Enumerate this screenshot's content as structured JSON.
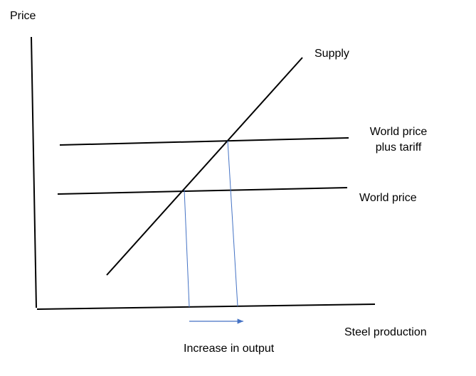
{
  "labels": {
    "y_axis": "Price",
    "x_axis": "Steel production",
    "supply": "Supply",
    "world_price_plus_tariff_line1": "World price",
    "world_price_plus_tariff_line2": "plus tariff",
    "world_price": "World price",
    "increase_in_output": "Increase in output"
  },
  "colors": {
    "lines": "#000000",
    "projection_lines": "#4472c4",
    "arrow": "#4472c4"
  }
}
